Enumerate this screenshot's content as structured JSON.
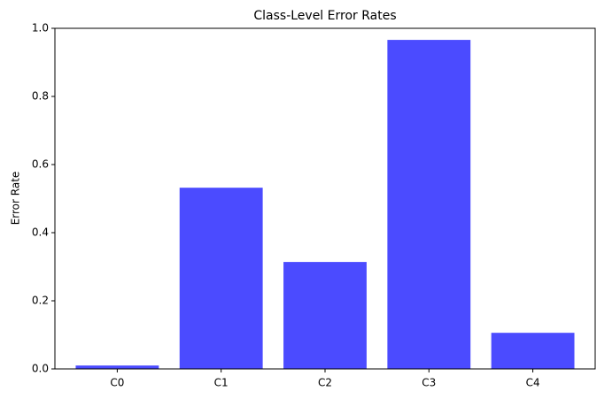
{
  "chart_data": {
    "type": "bar",
    "title": "Class-Level Error Rates",
    "ylabel": "Error Rate",
    "categories": [
      "C0",
      "C1",
      "C2",
      "C3",
      "C4"
    ],
    "values": [
      0.01,
      0.532,
      0.314,
      0.966,
      0.106
    ],
    "color": "#4b4bff",
    "ylim": [
      0,
      1
    ],
    "yticks": [
      {
        "value": 0,
        "label": "0.0"
      },
      0.2,
      0.4,
      0.6,
      0.8,
      {
        "value": 1,
        "label": "1.0"
      }
    ],
    "grid": false
  }
}
